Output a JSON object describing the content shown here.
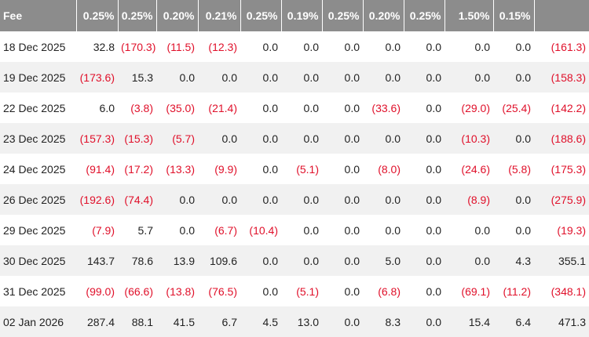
{
  "table": {
    "header": [
      "Fee",
      "0.25%",
      "0.25%",
      "0.20%",
      "0.21%",
      "0.25%",
      "0.19%",
      "0.25%",
      "0.20%",
      "0.25%",
      "1.50%",
      "0.15%"
    ],
    "rows": [
      [
        "18 Dec 2025",
        "32.8",
        "(170.3)",
        "(11.5)",
        "(12.3)",
        "0.0",
        "0.0",
        "0.0",
        "0.0",
        "0.0",
        "0.0",
        "0.0",
        "(161.3)"
      ],
      [
        "19 Dec 2025",
        "(173.6)",
        "15.3",
        "0.0",
        "0.0",
        "0.0",
        "0.0",
        "0.0",
        "0.0",
        "0.0",
        "0.0",
        "0.0",
        "(158.3)"
      ],
      [
        "22 Dec 2025",
        "6.0",
        "(3.8)",
        "(35.0)",
        "(21.4)",
        "0.0",
        "0.0",
        "0.0",
        "(33.6)",
        "0.0",
        "(29.0)",
        "(25.4)",
        "(142.2)"
      ],
      [
        "23 Dec 2025",
        "(157.3)",
        "(15.3)",
        "(5.7)",
        "0.0",
        "0.0",
        "0.0",
        "0.0",
        "0.0",
        "0.0",
        "(10.3)",
        "0.0",
        "(188.6)"
      ],
      [
        "24 Dec 2025",
        "(91.4)",
        "(17.2)",
        "(13.3)",
        "(9.9)",
        "0.0",
        "(5.1)",
        "0.0",
        "(8.0)",
        "0.0",
        "(24.6)",
        "(5.8)",
        "(175.3)"
      ],
      [
        "26 Dec 2025",
        "(192.6)",
        "(74.4)",
        "0.0",
        "0.0",
        "0.0",
        "0.0",
        "0.0",
        "0.0",
        "0.0",
        "(8.9)",
        "0.0",
        "(275.9)"
      ],
      [
        "29 Dec 2025",
        "(7.9)",
        "5.7",
        "0.0",
        "(6.7)",
        "(10.4)",
        "0.0",
        "0.0",
        "0.0",
        "0.0",
        "0.0",
        "0.0",
        "(19.3)"
      ],
      [
        "30 Dec 2025",
        "143.7",
        "78.6",
        "13.9",
        "109.6",
        "0.0",
        "0.0",
        "0.0",
        "5.0",
        "0.0",
        "0.0",
        "4.3",
        "355.1"
      ],
      [
        "31 Dec 2025",
        "(99.0)",
        "(66.6)",
        "(13.8)",
        "(76.5)",
        "0.0",
        "(5.1)",
        "0.0",
        "(6.8)",
        "0.0",
        "(69.1)",
        "(11.2)",
        "(348.1)"
      ],
      [
        "02 Jan 2026",
        "287.4",
        "88.1",
        "41.5",
        "6.7",
        "4.5",
        "13.0",
        "0.0",
        "8.3",
        "0.0",
        "15.4",
        "6.4",
        "471.3"
      ]
    ]
  }
}
